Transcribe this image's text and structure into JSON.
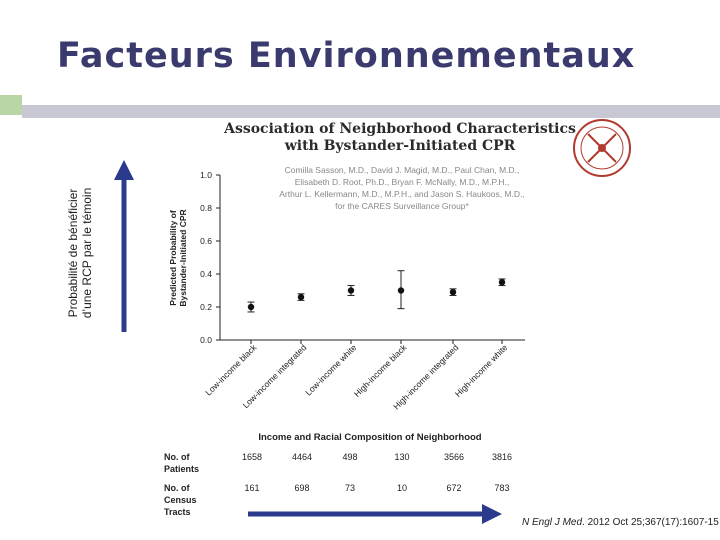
{
  "slide": {
    "title": "Facteurs Environnementaux",
    "y_annotation_line1": "Probabilité de bénéficier",
    "y_annotation_line2": "d’une RCP par le témoin",
    "source_journal": "N Engl J Med",
    "source_rest": ". 2012 Oct 25;367(17):1607-15",
    "colors": {
      "title": "#3a3a6e",
      "arrow": "#2b3a8c",
      "accent_green": "#b9d6a6",
      "accent_gray": "#c8c8d4"
    }
  },
  "chart_data": {
    "type": "scatter",
    "title": "Association of Neighborhood Characteristics",
    "title_line2": "with Bystander-Initiated CPR",
    "authors": [
      "Comilla Sasson, M.D., David J. Magid, M.D., Paul Chan, M.D.,",
      "Elisabeth D. Root, Ph.D., Bryan F. McNally, M.D., M.P.H.,",
      "Arthur L. Kellermann, M.D., M.P.H., and Jason S. Haukoos, M.D.,",
      "for the CARES Surveillance Group*"
    ],
    "ylabel_line1": "Predicted Probability of",
    "ylabel_line2": "Bystander-Initiated CPR",
    "xlabel": "Income and Racial Composition of Neighborhood",
    "ylim": [
      0.0,
      1.0
    ],
    "yticks": [
      "0.0",
      "0.2",
      "0.4",
      "0.6",
      "0.8",
      "1.0"
    ],
    "categories": [
      "Low-income black",
      "Low-income integrated",
      "Low-income white",
      "High-income black",
      "High-income integrated",
      "High-income white"
    ],
    "values": [
      0.2,
      0.26,
      0.3,
      0.3,
      0.29,
      0.35
    ],
    "ci_low": [
      0.17,
      0.24,
      0.27,
      0.19,
      0.27,
      0.33
    ],
    "ci_high": [
      0.23,
      0.28,
      0.33,
      0.42,
      0.31,
      0.37
    ],
    "table": {
      "row1_label_line1": "No. of",
      "row1_label_line2": "Patients",
      "row1_values": [
        "1658",
        "4464",
        "498",
        "130",
        "3566",
        "3816"
      ],
      "row2_label_line1": "No. of",
      "row2_label_line2": "Census",
      "row2_label_line3": "Tracts",
      "row2_values": [
        "161",
        "698",
        "73",
        "10",
        "672",
        "783"
      ]
    },
    "grid": false,
    "legend": "none"
  }
}
